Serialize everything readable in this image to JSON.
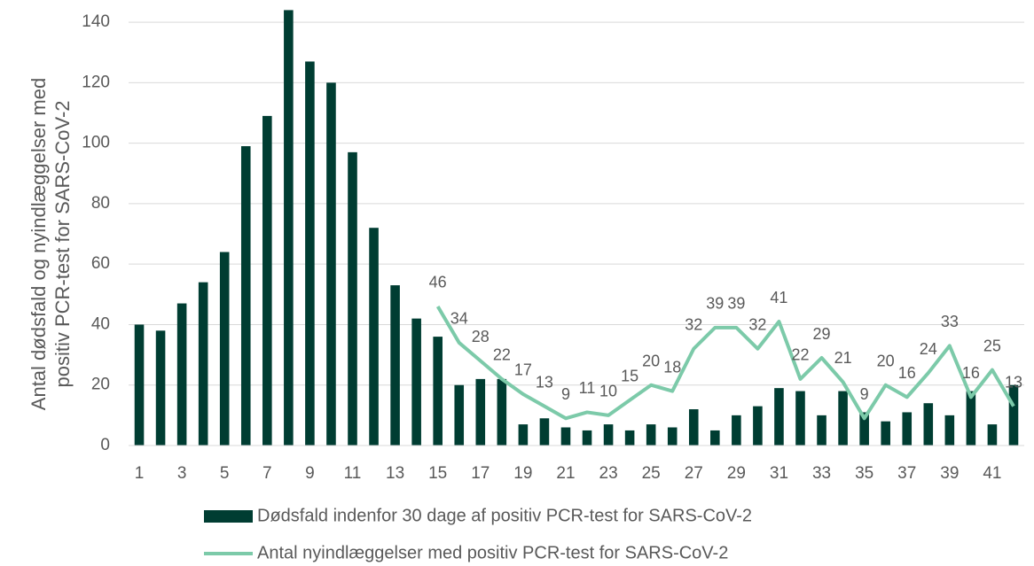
{
  "chart_data": {
    "type": "bar_line",
    "ylabel": [
      "Antal dødsfald og nyindlæggelser med",
      "positiv PCR-test for SARS-CoV-2"
    ],
    "categories": [
      "1",
      null,
      "3",
      null,
      "5",
      null,
      "7",
      null,
      "9",
      null,
      "11",
      null,
      "13",
      null,
      "15",
      null,
      "17",
      null,
      "19",
      null,
      "21",
      null,
      "23",
      null,
      "25",
      null,
      "27",
      null,
      "29",
      null,
      "31",
      null,
      "33",
      null,
      "35",
      null,
      "37",
      null,
      "39",
      null,
      "41",
      null
    ],
    "series": [
      {
        "name": "Dødsfald indenfor 30 dage af positiv PCR-test for SARS-CoV-2",
        "type": "bar",
        "color": "#003d32",
        "values": [
          40,
          38,
          47,
          54,
          64,
          99,
          109,
          144,
          127,
          120,
          97,
          72,
          53,
          42,
          36,
          20,
          22,
          22,
          7,
          9,
          6,
          5,
          7,
          5,
          7,
          6,
          12,
          5,
          10,
          13,
          19,
          18,
          10,
          18,
          11,
          8,
          11,
          14,
          10,
          18,
          7,
          20
        ]
      },
      {
        "name": "Antal nyindlæggelser med positiv PCR-test for SARS-CoV-2",
        "type": "line",
        "color": "#7ccaa9",
        "values": [
          null,
          null,
          null,
          null,
          null,
          null,
          null,
          null,
          null,
          null,
          null,
          null,
          null,
          null,
          46,
          34,
          28,
          22,
          17,
          13,
          9,
          11,
          10,
          15,
          20,
          18,
          32,
          39,
          39,
          32,
          41,
          22,
          29,
          21,
          9,
          20,
          16,
          24,
          33,
          16,
          25,
          13
        ]
      }
    ],
    "ylim": [
      0,
      145
    ],
    "yticks": [
      0,
      20,
      40,
      60,
      80,
      100,
      120,
      140
    ],
    "grid": true
  }
}
